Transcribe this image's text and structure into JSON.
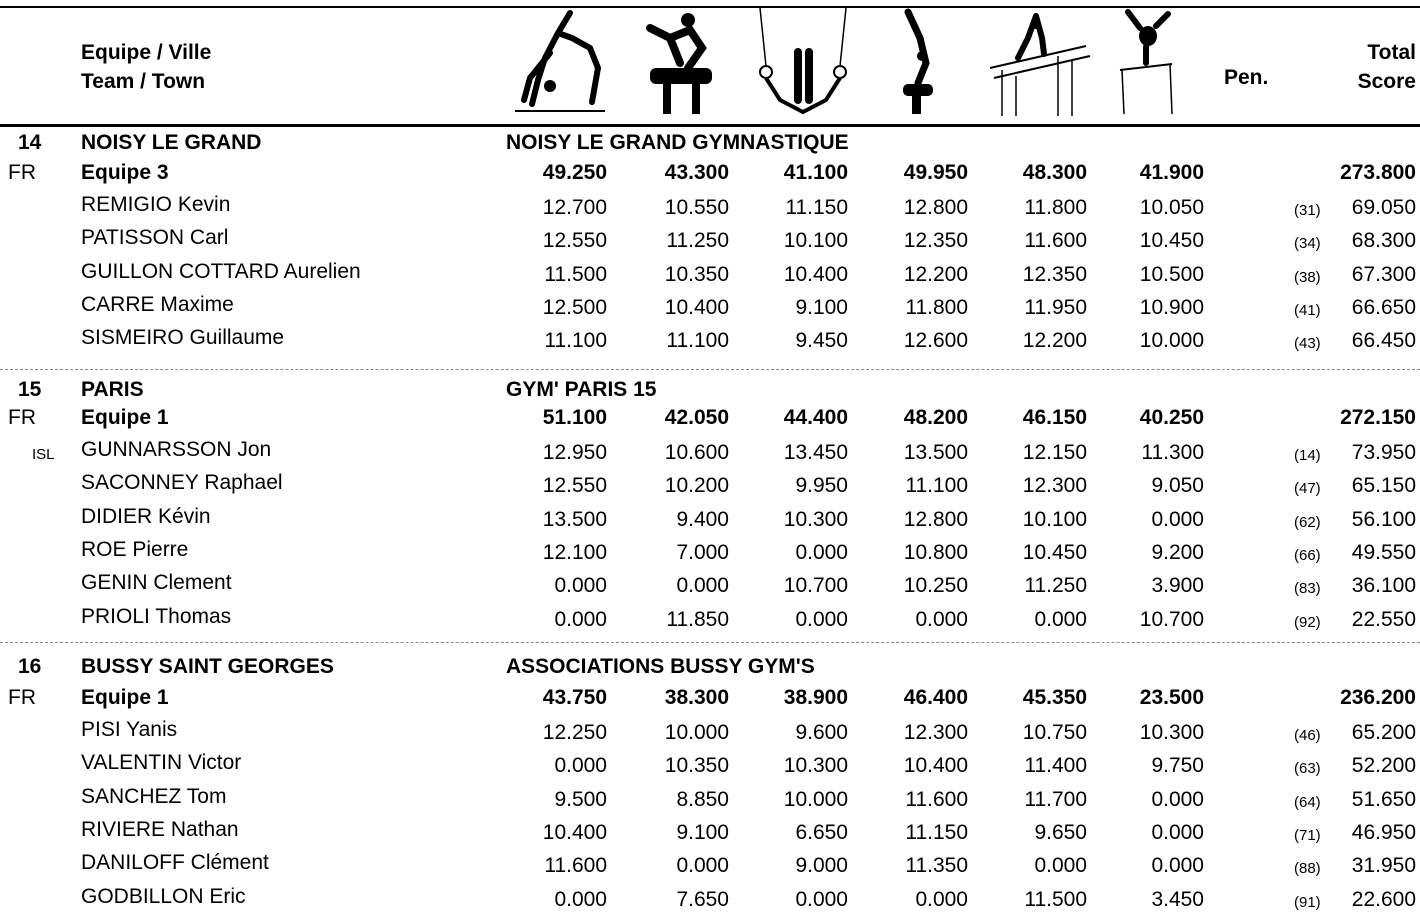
{
  "header": {
    "team_label_1": "Equipe / Ville",
    "team_label_2": "Team / Town",
    "pen_label": "Pen.",
    "total_label_1": "Total",
    "total_label_2": "Score",
    "apparatus_icons": [
      "floor-exercise-icon",
      "pommel-horse-icon",
      "rings-icon",
      "vault-icon",
      "parallel-bars-icon",
      "horizontal-bar-icon"
    ]
  },
  "teams": [
    {
      "rank": "14",
      "country": "FR",
      "town": "NOISY LE GRAND",
      "club": "NOISY LE GRAND GYMNASTIQUE",
      "team_name": "Equipe 3",
      "scores": [
        "49.250",
        "43.300",
        "41.100",
        "49.950",
        "48.300",
        "41.900"
      ],
      "total": "273.800",
      "athletes": [
        {
          "nat": "",
          "name": "REMIGIO Kevin",
          "scores": [
            "12.700",
            "10.550",
            "11.150",
            "12.800",
            "11.800",
            "10.050"
          ],
          "place": "(31)",
          "total": "69.050"
        },
        {
          "nat": "",
          "name": "PATISSON  Carl",
          "scores": [
            "12.550",
            "11.250",
            "10.100",
            "12.350",
            "11.600",
            "10.450"
          ],
          "place": "(34)",
          "total": "68.300"
        },
        {
          "nat": "",
          "name": "GUILLON COTTARD Aurelien",
          "scores": [
            "11.500",
            "10.350",
            "10.400",
            "12.200",
            "12.350",
            "10.500"
          ],
          "place": "(38)",
          "total": "67.300"
        },
        {
          "nat": "",
          "name": "CARRE Maxime",
          "scores": [
            "12.500",
            "10.400",
            "9.100",
            "11.800",
            "11.950",
            "10.900"
          ],
          "place": "(41)",
          "total": "66.650"
        },
        {
          "nat": "",
          "name": "SISMEIRO Guillaume",
          "scores": [
            "11.100",
            "11.100",
            "9.450",
            "12.600",
            "12.200",
            "10.000"
          ],
          "place": "(43)",
          "total": "66.450"
        }
      ]
    },
    {
      "rank": "15",
      "country": "FR",
      "town": "PARIS",
      "club": "GYM' PARIS 15",
      "team_name": "Equipe 1",
      "scores": [
        "51.100",
        "42.050",
        "44.400",
        "48.200",
        "46.150",
        "40.250"
      ],
      "total": "272.150",
      "athletes": [
        {
          "nat": "ISL",
          "name": "GUNNARSSON Jon",
          "scores": [
            "12.950",
            "10.600",
            "13.450",
            "13.500",
            "12.150",
            "11.300"
          ],
          "place": "(14)",
          "total": "73.950"
        },
        {
          "nat": "",
          "name": "SACONNEY Raphael",
          "scores": [
            "12.550",
            "10.200",
            "9.950",
            "11.100",
            "12.300",
            "9.050"
          ],
          "place": "(47)",
          "total": "65.150"
        },
        {
          "nat": "",
          "name": "DIDIER Kévin",
          "scores": [
            "13.500",
            "9.400",
            "10.300",
            "12.800",
            "10.100",
            "0.000"
          ],
          "place": "(62)",
          "total": "56.100"
        },
        {
          "nat": "",
          "name": "ROE Pierre",
          "scores": [
            "12.100",
            "7.000",
            "0.000",
            "10.800",
            "10.450",
            "9.200"
          ],
          "place": "(66)",
          "total": "49.550"
        },
        {
          "nat": "",
          "name": "GENIN Clement",
          "scores": [
            "0.000",
            "0.000",
            "10.700",
            "10.250",
            "11.250",
            "3.900"
          ],
          "place": "(83)",
          "total": "36.100"
        },
        {
          "nat": "",
          "name": "PRIOLI Thomas",
          "scores": [
            "0.000",
            "11.850",
            "0.000",
            "0.000",
            "0.000",
            "10.700"
          ],
          "place": "(92)",
          "total": "22.550"
        }
      ]
    },
    {
      "rank": "16",
      "country": "FR",
      "town": "BUSSY SAINT GEORGES",
      "club": "ASSOCIATIONS BUSSY GYM'S",
      "team_name": "Equipe 1",
      "scores": [
        "43.750",
        "38.300",
        "38.900",
        "46.400",
        "45.350",
        "23.500"
      ],
      "total": "236.200",
      "athletes": [
        {
          "nat": "",
          "name": "PISI Yanis",
          "scores": [
            "12.250",
            "10.000",
            "9.600",
            "12.300",
            "10.750",
            "10.300"
          ],
          "place": "(46)",
          "total": "65.200"
        },
        {
          "nat": "",
          "name": "VALENTIN Victor",
          "scores": [
            "0.000",
            "10.350",
            "10.300",
            "10.400",
            "11.400",
            "9.750"
          ],
          "place": "(63)",
          "total": "52.200"
        },
        {
          "nat": "",
          "name": "SANCHEZ Tom",
          "scores": [
            "9.500",
            "8.850",
            "10.000",
            "11.600",
            "11.700",
            "0.000"
          ],
          "place": "(64)",
          "total": "51.650"
        },
        {
          "nat": "",
          "name": "RIVIERE Nathan",
          "scores": [
            "10.400",
            "9.100",
            "6.650",
            "11.150",
            "9.650",
            "0.000"
          ],
          "place": "(71)",
          "total": "46.950"
        },
        {
          "nat": "",
          "name": "DANILOFF Clément",
          "scores": [
            "11.600",
            "0.000",
            "9.000",
            "11.350",
            "0.000",
            "0.000"
          ],
          "place": "(88)",
          "total": "31.950"
        },
        {
          "nat": "",
          "name": "GODBILLON Eric",
          "scores": [
            "0.000",
            "7.650",
            "0.000",
            "0.000",
            "11.500",
            "3.450"
          ],
          "place": "(91)",
          "total": "22.600"
        }
      ]
    }
  ]
}
